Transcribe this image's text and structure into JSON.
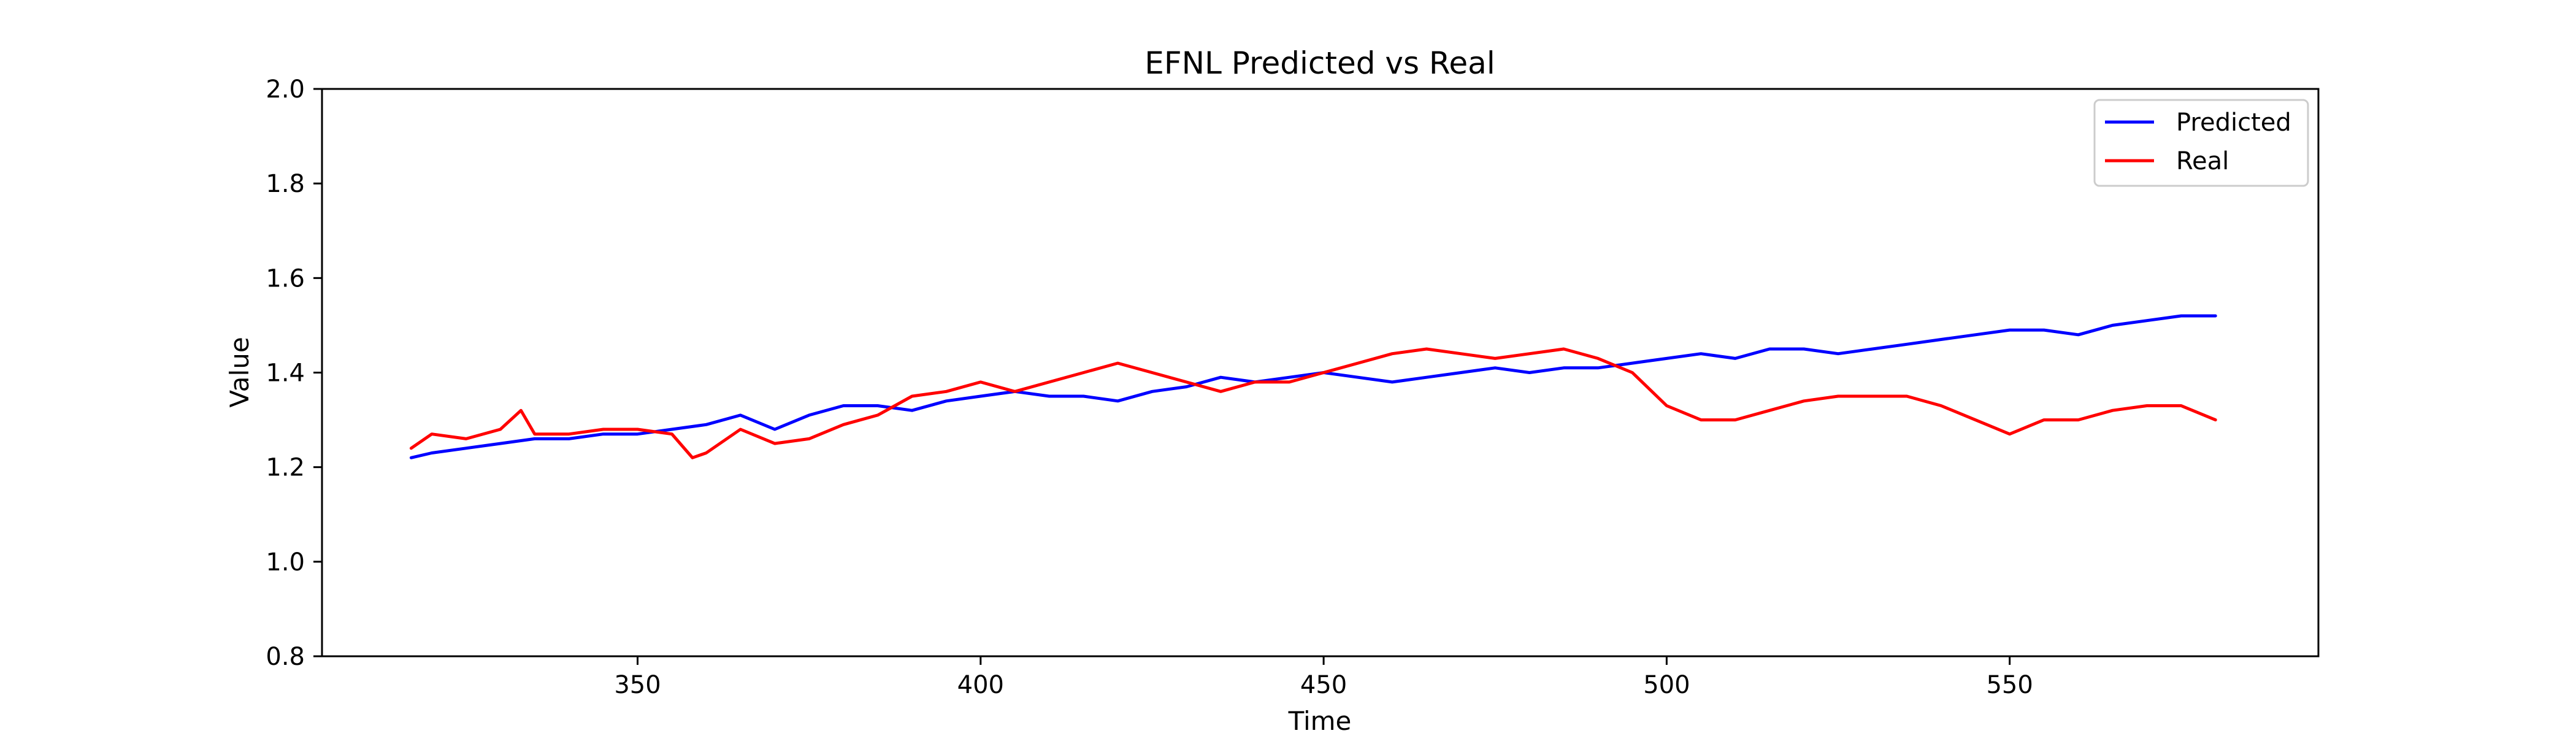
{
  "chart_data": {
    "type": "line",
    "title": "EFNL Predicted vs Real",
    "xlabel": "Time",
    "ylabel": "Value",
    "xlim": [
      304,
      595
    ],
    "ylim": [
      0.8,
      2.0
    ],
    "xticks": [
      350,
      400,
      450,
      500,
      550
    ],
    "yticks": [
      0.8,
      1.0,
      1.2,
      1.4,
      1.6,
      1.8,
      2.0
    ],
    "xtick_labels": [
      "350",
      "400",
      "450",
      "500",
      "550"
    ],
    "ytick_labels": [
      "0.8",
      "1.0",
      "1.2",
      "1.4",
      "1.6",
      "1.8",
      "2.0"
    ],
    "grid": false,
    "legend": {
      "position": "top-right",
      "entries": [
        "Predicted",
        "Real"
      ]
    },
    "series": [
      {
        "name": "Predicted",
        "color": "#0000ff",
        "x": [
          317,
          320,
          325,
          330,
          335,
          340,
          345,
          350,
          355,
          360,
          365,
          370,
          375,
          380,
          385,
          390,
          395,
          400,
          405,
          410,
          415,
          420,
          425,
          430,
          435,
          440,
          445,
          450,
          455,
          460,
          465,
          470,
          475,
          480,
          485,
          490,
          495,
          500,
          505,
          510,
          515,
          520,
          525,
          530,
          535,
          540,
          545,
          550,
          555,
          560,
          565,
          570,
          575,
          580
        ],
        "values": [
          1.22,
          1.23,
          1.24,
          1.25,
          1.26,
          1.26,
          1.27,
          1.27,
          1.28,
          1.29,
          1.31,
          1.28,
          1.31,
          1.33,
          1.33,
          1.32,
          1.34,
          1.35,
          1.36,
          1.35,
          1.35,
          1.34,
          1.36,
          1.37,
          1.39,
          1.38,
          1.39,
          1.4,
          1.39,
          1.38,
          1.39,
          1.4,
          1.41,
          1.4,
          1.41,
          1.41,
          1.42,
          1.43,
          1.44,
          1.43,
          1.45,
          1.45,
          1.44,
          1.45,
          1.46,
          1.47,
          1.48,
          1.49,
          1.49,
          1.48,
          1.5,
          1.51,
          1.52,
          1.52
        ]
      },
      {
        "name": "Real",
        "color": "#ff0000",
        "x": [
          317,
          320,
          325,
          330,
          333,
          335,
          340,
          345,
          350,
          355,
          358,
          360,
          365,
          370,
          375,
          380,
          385,
          390,
          395,
          400,
          405,
          410,
          415,
          420,
          425,
          430,
          435,
          440,
          445,
          450,
          455,
          460,
          465,
          470,
          475,
          480,
          485,
          490,
          495,
          500,
          505,
          510,
          515,
          520,
          525,
          530,
          535,
          540,
          545,
          550,
          555,
          560,
          565,
          570,
          575,
          580
        ],
        "values": [
          1.24,
          1.27,
          1.26,
          1.28,
          1.32,
          1.27,
          1.27,
          1.28,
          1.28,
          1.27,
          1.22,
          1.23,
          1.28,
          1.25,
          1.26,
          1.29,
          1.31,
          1.35,
          1.36,
          1.38,
          1.36,
          1.38,
          1.4,
          1.42,
          1.4,
          1.38,
          1.36,
          1.38,
          1.38,
          1.4,
          1.42,
          1.44,
          1.45,
          1.44,
          1.43,
          1.44,
          1.45,
          1.43,
          1.4,
          1.33,
          1.3,
          1.3,
          1.32,
          1.34,
          1.35,
          1.35,
          1.35,
          1.33,
          1.3,
          1.27,
          1.3,
          1.3,
          1.32,
          1.33,
          1.33,
          1.3
        ]
      }
    ]
  }
}
